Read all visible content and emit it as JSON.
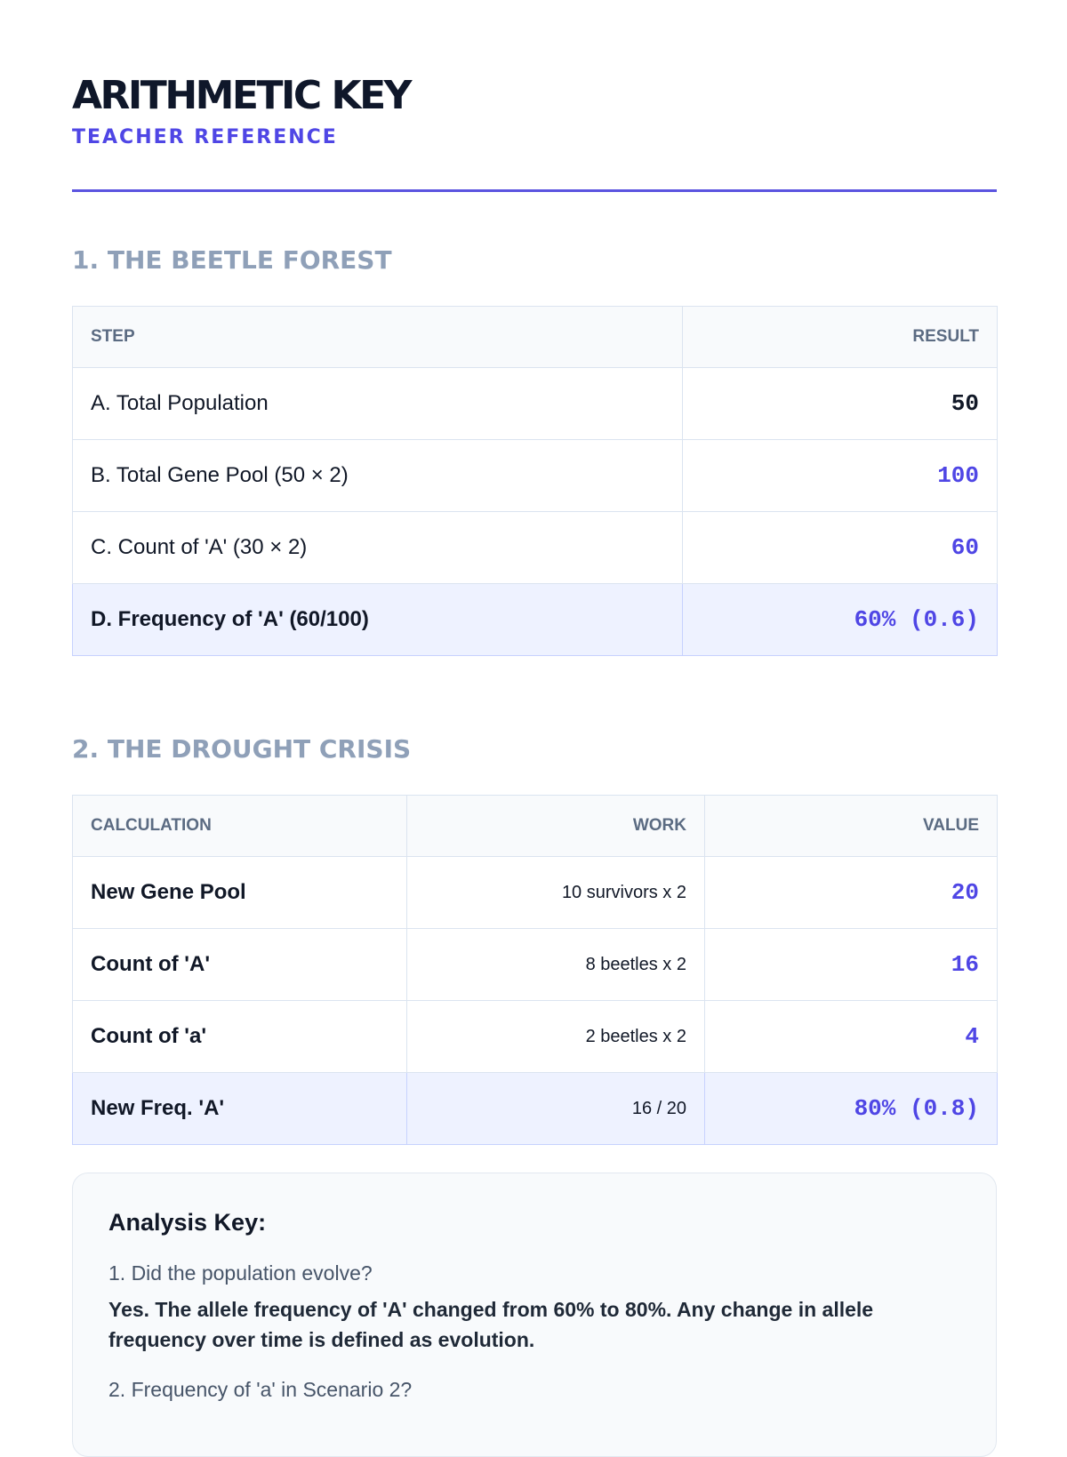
{
  "header": {
    "title": "ARITHMETIC KEY",
    "subtitle": "TEACHER REFERENCE"
  },
  "section1": {
    "title": "1. THE BEETLE FOREST",
    "columns": [
      "STEP",
      "RESULT"
    ],
    "rows": [
      {
        "step": "A. Total Population",
        "result": "50"
      },
      {
        "step": "B. Total Gene Pool (50 × 2)",
        "result": "100"
      },
      {
        "step": "C. Count of 'A' (30 × 2)",
        "result": "60"
      },
      {
        "step": "D. Frequency of 'A' (60/100)",
        "result": "60% (0.6)"
      }
    ]
  },
  "section2": {
    "title": "2. THE DROUGHT CRISIS",
    "columns": [
      "CALCULATION",
      "WORK",
      "VALUE"
    ],
    "rows": [
      {
        "calc": "New Gene Pool",
        "work": "10 survivors x 2",
        "value": "20"
      },
      {
        "calc": "Count of 'A'",
        "work": "8 beetles x 2",
        "value": "16"
      },
      {
        "calc": "Count of 'a'",
        "work": "2 beetles x 2",
        "value": "4"
      },
      {
        "calc": "New Freq. 'A'",
        "work": "16 / 20",
        "value": "80% (0.8)"
      }
    ]
  },
  "analysis": {
    "title": "Analysis Key:",
    "items": [
      {
        "question": "1. Did the population evolve?",
        "answer": "Yes. The allele frequency of 'A' changed from 60% to 80%. Any change in allele frequency over time is defined as evolution."
      },
      {
        "question": "2. Frequency of 'a' in Scenario 2?",
        "answer": ""
      }
    ]
  }
}
